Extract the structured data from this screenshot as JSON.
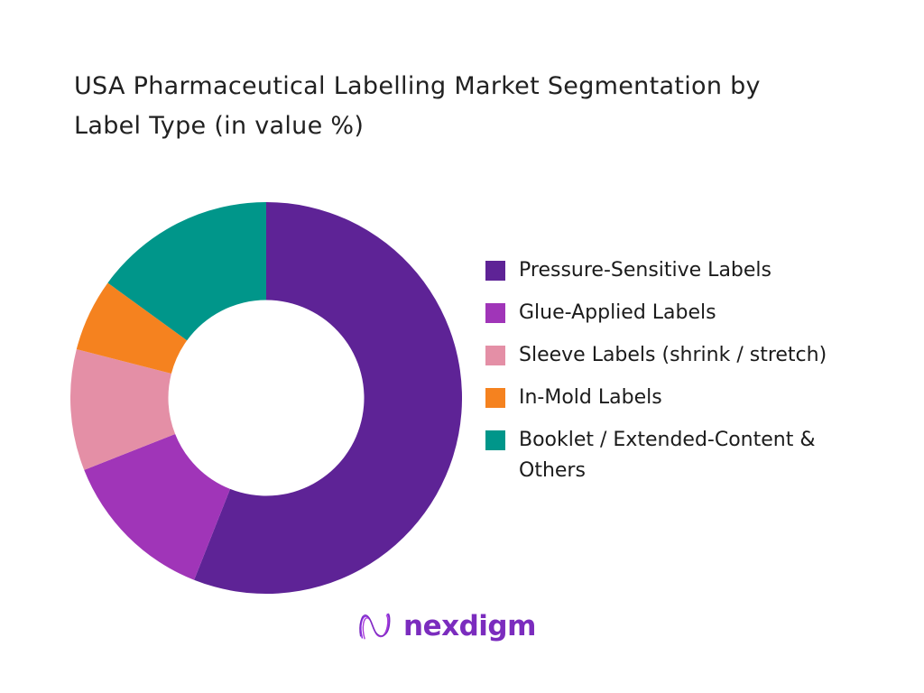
{
  "page": {
    "background": "#ffffff"
  },
  "title": {
    "text": "USA Pharmaceutical Labelling Market Segmentation by Label Type (in value %)",
    "lines": [
      "USA Pharmaceutical Labelling Market Segmentation by",
      "Label Type (in value %)"
    ]
  },
  "chart_data": {
    "type": "pie",
    "subtype": "donut",
    "title": "USA Pharmaceutical Labelling Market Segmentation by Label Type (in value %)",
    "unit": "value %",
    "categories": [
      "Pressure-Sensitive Labels",
      "Glue-Applied Labels",
      "Sleeve Labels (shrink / stretch)",
      "In-Mold Labels",
      "Booklet / Extended-Content & Others"
    ],
    "values": [
      56,
      13,
      10,
      6,
      15
    ],
    "colors": [
      "#5E2396",
      "#A035B8",
      "#E48FA6",
      "#F5821F",
      "#00968A"
    ],
    "start_angle_deg": 0,
    "direction": "clockwise",
    "inner_radius_ratio": 0.5,
    "legend_position": "right",
    "data_labels": "none"
  },
  "brand": {
    "wordmark": "nexdigm",
    "color_primary": "#7B2CBE",
    "color_secondary": "#A93BD6"
  }
}
